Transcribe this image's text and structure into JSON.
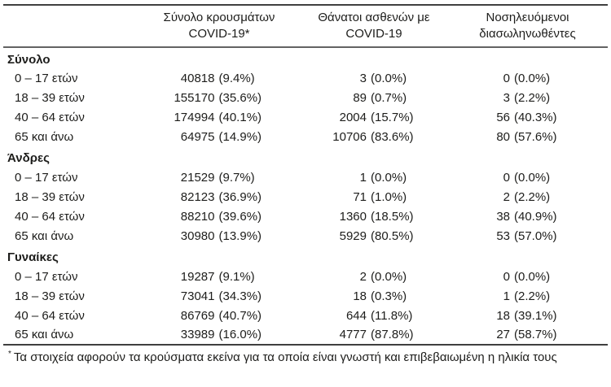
{
  "table": {
    "headers": [
      {
        "line1": "Σύνολο κρουσμάτων",
        "line2": "COVID-19*"
      },
      {
        "line1": "Θάνατοι ασθενών με",
        "line2": "COVID-19"
      },
      {
        "line1": "Νοσηλευόμενοι",
        "line2": "διασωληνωθέντες"
      }
    ],
    "sections": [
      {
        "label": "Σύνολο",
        "rows": [
          {
            "label": "0 – 17 ετών",
            "cases": "40818",
            "cases_pct": "(9.4%)",
            "deaths": "3",
            "deaths_pct": "(0.0%)",
            "intubated": "0",
            "intubated_pct": "(0.0%)"
          },
          {
            "label": "18 – 39 ετών",
            "cases": "155170",
            "cases_pct": "(35.6%)",
            "deaths": "89",
            "deaths_pct": "(0.7%)",
            "intubated": "3",
            "intubated_pct": "(2.2%)"
          },
          {
            "label": "40 – 64 ετών",
            "cases": "174994",
            "cases_pct": "(40.1%)",
            "deaths": "2004",
            "deaths_pct": "(15.7%)",
            "intubated": "56",
            "intubated_pct": "(40.3%)"
          },
          {
            "label": "65 και άνω",
            "cases": "64975",
            "cases_pct": "(14.9%)",
            "deaths": "10706",
            "deaths_pct": "(83.6%)",
            "intubated": "80",
            "intubated_pct": "(57.6%)"
          }
        ]
      },
      {
        "label": "Άνδρες",
        "rows": [
          {
            "label": "0 – 17 ετών",
            "cases": "21529",
            "cases_pct": "(9.7%)",
            "deaths": "1",
            "deaths_pct": "(0.0%)",
            "intubated": "0",
            "intubated_pct": "(0.0%)"
          },
          {
            "label": "18 – 39 ετών",
            "cases": "82123",
            "cases_pct": "(36.9%)",
            "deaths": "71",
            "deaths_pct": "(1.0%)",
            "intubated": "2",
            "intubated_pct": "(2.2%)"
          },
          {
            "label": "40 – 64 ετών",
            "cases": "88210",
            "cases_pct": "(39.6%)",
            "deaths": "1360",
            "deaths_pct": "(18.5%)",
            "intubated": "38",
            "intubated_pct": "(40.9%)"
          },
          {
            "label": "65 και άνω",
            "cases": "30980",
            "cases_pct": "(13.9%)",
            "deaths": "5929",
            "deaths_pct": "(80.5%)",
            "intubated": "53",
            "intubated_pct": "(57.0%)"
          }
        ]
      },
      {
        "label": "Γυναίκες",
        "rows": [
          {
            "label": "0 – 17 ετών",
            "cases": "19287",
            "cases_pct": "(9.1%)",
            "deaths": "2",
            "deaths_pct": "(0.0%)",
            "intubated": "0",
            "intubated_pct": "(0.0%)"
          },
          {
            "label": "18 – 39 ετών",
            "cases": "73041",
            "cases_pct": "(34.3%)",
            "deaths": "18",
            "deaths_pct": "(0.3%)",
            "intubated": "1",
            "intubated_pct": "(2.2%)"
          },
          {
            "label": "40 – 64 ετών",
            "cases": "86769",
            "cases_pct": "(40.7%)",
            "deaths": "644",
            "deaths_pct": "(11.8%)",
            "intubated": "18",
            "intubated_pct": "(39.1%)"
          },
          {
            "label": "65 και άνω",
            "cases": "33989",
            "cases_pct": "(16.0%)",
            "deaths": "4777",
            "deaths_pct": "(87.8%)",
            "intubated": "27",
            "intubated_pct": "(58.7%)"
          }
        ]
      }
    ],
    "footnote_marker": "*",
    "footnote_text": "Τα στοιχεία αφορούν τα κρούσματα εκείνα για τα οποία είναι γνωστή και επιβεβαιωμένη η ηλικία τους"
  },
  "colors": {
    "text": "#1d1d1b",
    "rule_dark": "#3f3f3f",
    "rule_mid": "#636363"
  }
}
